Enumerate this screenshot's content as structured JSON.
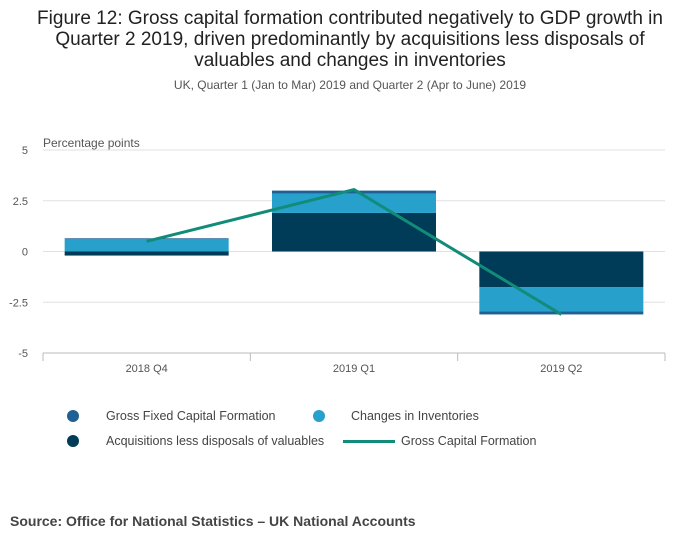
{
  "title": "Figure 12: Gross capital formation contributed negatively to GDP growth in Quarter 2 2019, driven predominantly by acquisitions less disposals of valuables and changes in inventories",
  "subtitle": "UK, Quarter 1 (Jan to Mar) 2019 and Quarter 2 (Apr to June) 2019",
  "source": "Source: Office for National Statistics – UK National Accounts",
  "colors": {
    "gfcf": "#206095",
    "inventories": "#27a0cc",
    "valuables": "#003c57",
    "gcf_line": "#118c7b",
    "grid": "#e0e0e0",
    "axis": "#bbbbbb"
  },
  "chart_data": {
    "type": "bar",
    "stacked": true,
    "title": "Figure 12: Gross capital formation contributed negatively to GDP growth in Quarter 2 2019, driven predominantly by acquisitions less disposals of valuables and changes in inventories",
    "ylabel": "Percentage points",
    "xlabel": "",
    "ylim": [
      -5,
      5
    ],
    "yticks": [
      5,
      2.5,
      0,
      -2.5,
      -5
    ],
    "ytick_labels": [
      "5",
      "2.5",
      "0",
      "-2.5",
      "-5"
    ],
    "categories": [
      "2018 Q4",
      "2019 Q1",
      "2019 Q2"
    ],
    "series": [
      {
        "name": "Gross Fixed Capital Formation",
        "kind": "bar",
        "color": "#206095",
        "values": [
          0.05,
          0.15,
          -0.15
        ]
      },
      {
        "name": "Changes in Inventories",
        "kind": "bar",
        "color": "#27a0cc",
        "values": [
          0.6,
          0.95,
          -1.2
        ]
      },
      {
        "name": "Acquisitions less disposals of valuables",
        "kind": "bar",
        "color": "#003c57",
        "values": [
          -0.2,
          1.9,
          -1.75
        ]
      },
      {
        "name": "Gross Capital Formation",
        "kind": "line",
        "color": "#118c7b",
        "values": [
          0.5,
          3.05,
          -3.1
        ]
      }
    ]
  }
}
